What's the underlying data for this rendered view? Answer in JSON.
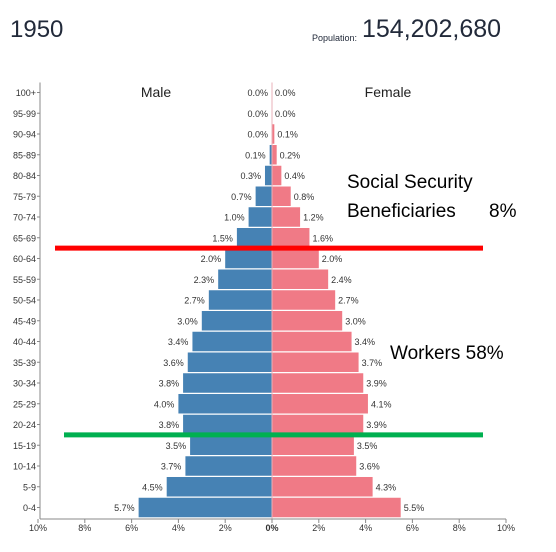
{
  "header": {
    "year": "1950",
    "population_label": "Population:",
    "population_value": "154,202,680"
  },
  "annotations": {
    "ss_line1": "Social Security",
    "ss_line2": "Beneficiaries",
    "ss_pct": "8%",
    "workers": "Workers 58%"
  },
  "colors": {
    "male": "#4682b4",
    "female": "#f07a86",
    "ss_line": "#ff0000",
    "workers_line": "#00b050"
  },
  "chart_data": {
    "type": "bar",
    "orientation": "horizontal",
    "layout": "population-pyramid",
    "male_label": "Male",
    "female_label": "Female",
    "categories": [
      "0-4",
      "5-9",
      "10-14",
      "15-19",
      "20-24",
      "25-29",
      "30-34",
      "35-39",
      "40-44",
      "45-49",
      "50-54",
      "55-59",
      "60-64",
      "65-69",
      "70-74",
      "75-79",
      "80-84",
      "85-89",
      "90-94",
      "95-99",
      "100+"
    ],
    "series": [
      {
        "name": "Male",
        "values": [
          5.7,
          4.5,
          3.7,
          3.5,
          3.8,
          4.0,
          3.8,
          3.6,
          3.4,
          3.0,
          2.7,
          2.3,
          2.0,
          1.5,
          1.0,
          0.7,
          0.3,
          0.1,
          0.0,
          0.0,
          0.0
        ],
        "labels": [
          "5.7%",
          "4.5%",
          "3.7%",
          "3.5%",
          "3.8%",
          "4.0%",
          "3.8%",
          "3.6%",
          "3.4%",
          "3.0%",
          "2.7%",
          "2.3%",
          "2.0%",
          "1.5%",
          "1.0%",
          "0.7%",
          "0.3%",
          "0.1%",
          "0.0%",
          "0.0%",
          "0.0%"
        ]
      },
      {
        "name": "Female",
        "values": [
          5.5,
          4.3,
          3.6,
          3.5,
          3.9,
          4.1,
          3.9,
          3.7,
          3.4,
          3.0,
          2.7,
          2.4,
          2.0,
          1.6,
          1.2,
          0.8,
          0.4,
          0.2,
          0.1,
          0.0,
          0.0
        ],
        "labels": [
          "5.5%",
          "4.3%",
          "3.6%",
          "3.5%",
          "3.9%",
          "4.1%",
          "3.9%",
          "3.7%",
          "3.4%",
          "3.0%",
          "2.7%",
          "2.4%",
          "2.0%",
          "1.6%",
          "1.2%",
          "0.8%",
          "0.4%",
          "0.2%",
          "0.1%",
          "0.0%",
          "0.0%"
        ]
      }
    ],
    "x_ticks": [
      "10%",
      "8%",
      "6%",
      "4%",
      "2%",
      "0%",
      "2%",
      "4%",
      "6%",
      "8%",
      "10%"
    ],
    "xlim": [
      -10,
      10
    ],
    "reference_lines": [
      {
        "name": "social-security",
        "between": [
          "60-64",
          "65-69"
        ]
      },
      {
        "name": "workers",
        "between": [
          "15-19",
          "20-24"
        ]
      }
    ]
  }
}
